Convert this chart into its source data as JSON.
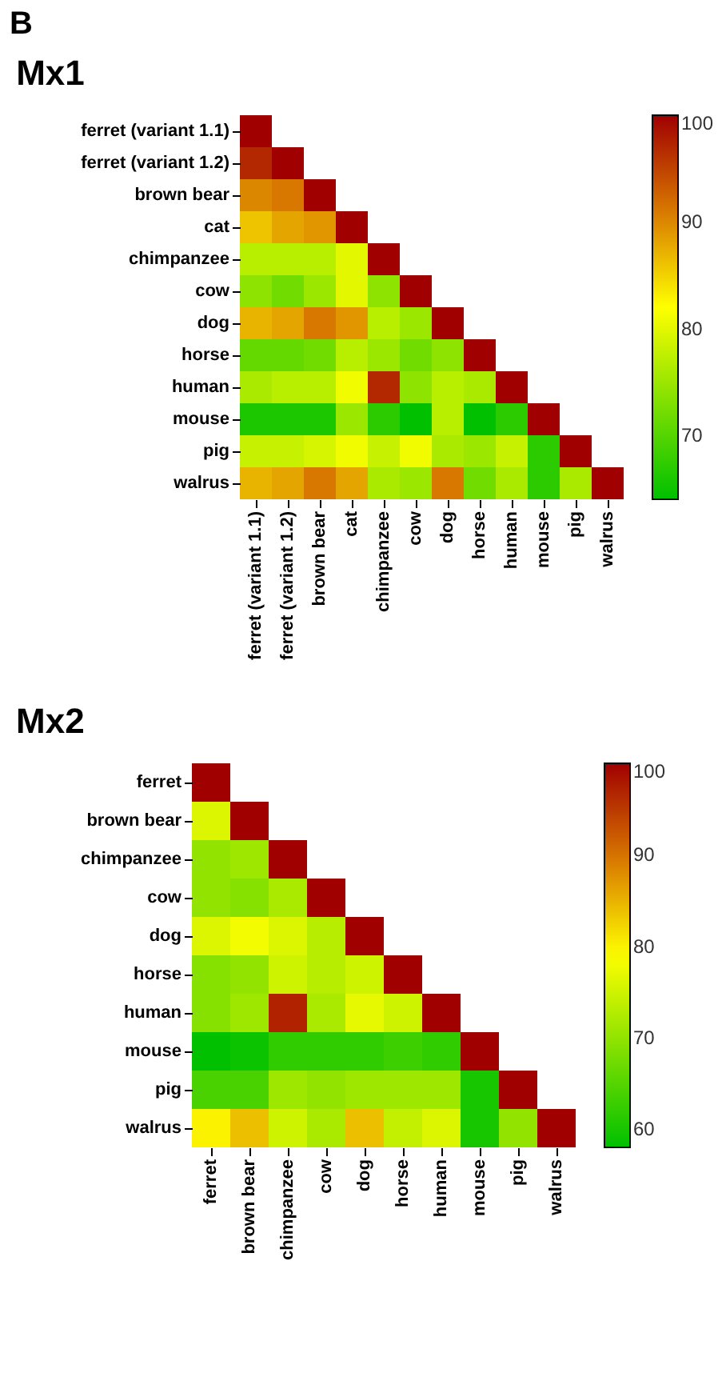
{
  "chart_data": [
    {
      "type": "heatmap",
      "title": "Mx1",
      "annotations": [
        "B"
      ],
      "categories": [
        "ferret (variant 1.1)",
        "ferret (variant 1.2)",
        "brown bear",
        "cat",
        "chimpanzee",
        "cow",
        "dog",
        "horse",
        "human",
        "mouse",
        "pig",
        "walrus"
      ],
      "y_categories": [
        "ferret (variant 1.1)",
        "ferret (variant 1.2)",
        "brown bear",
        "cat",
        "chimpanzee",
        "cow",
        "dog",
        "horse",
        "human",
        "mouse",
        "pig",
        "walrus"
      ],
      "cells": [
        [
          100,
          null,
          null,
          null,
          null,
          null,
          null,
          null,
          null,
          null,
          null,
          null
        ],
        [
          97,
          100,
          null,
          null,
          null,
          null,
          null,
          null,
          null,
          null,
          null,
          null
        ],
        [
          90,
          91,
          100,
          null,
          null,
          null,
          null,
          null,
          null,
          null,
          null,
          null
        ],
        [
          86,
          88,
          89,
          100,
          null,
          null,
          null,
          null,
          null,
          null,
          null,
          null
        ],
        [
          77,
          77,
          77,
          80,
          100,
          null,
          null,
          null,
          null,
          null,
          null,
          null
        ],
        [
          74,
          72,
          75,
          80,
          74,
          100,
          null,
          null,
          null,
          null,
          null,
          null
        ],
        [
          87,
          88,
          91,
          89,
          77,
          75,
          100,
          null,
          null,
          null,
          null,
          null
        ],
        [
          71,
          71,
          72,
          77,
          75,
          72,
          74,
          100,
          null,
          null,
          null,
          null
        ],
        [
          76,
          77,
          77,
          81,
          97,
          74,
          77,
          76,
          100,
          null,
          null,
          null
        ],
        [
          66,
          66,
          66,
          75,
          67,
          64,
          77,
          64,
          67,
          100,
          null,
          null
        ],
        [
          78,
          78,
          79,
          81,
          78,
          81,
          76,
          75,
          78,
          67,
          100,
          null
        ],
        [
          87,
          88,
          91,
          88,
          76,
          75,
          91,
          72,
          76,
          67,
          76,
          100
        ]
      ],
      "clim": [
        64,
        100
      ],
      "cticks": [
        70,
        80,
        90,
        100
      ]
    },
    {
      "type": "heatmap",
      "title": "Mx2",
      "categories": [
        "ferret",
        "brown bear",
        "chimpanzee",
        "cow",
        "dog",
        "horse",
        "human",
        "mouse",
        "pig",
        "walrus"
      ],
      "y_categories": [
        "ferret",
        "brown bear",
        "chimpanzee",
        "cow",
        "dog",
        "horse",
        "human",
        "mouse",
        "pig",
        "walrus"
      ],
      "cells": [
        [
          100,
          null,
          null,
          null,
          null,
          null,
          null,
          null,
          null,
          null
        ],
        [
          76,
          100,
          null,
          null,
          null,
          null,
          null,
          null,
          null,
          null
        ],
        [
          70,
          71,
          100,
          null,
          null,
          null,
          null,
          null,
          null,
          null
        ],
        [
          70,
          69,
          72,
          100,
          null,
          null,
          null,
          null,
          null,
          null
        ],
        [
          76,
          78,
          76,
          73,
          100,
          null,
          null,
          null,
          null,
          null
        ],
        [
          69,
          70,
          75,
          73,
          75,
          100,
          null,
          null,
          null,
          null
        ],
        [
          69,
          71,
          97,
          72,
          77,
          75,
          100,
          null,
          null,
          null
        ],
        [
          58,
          59,
          62,
          62,
          62,
          63,
          62,
          100,
          null,
          null
        ],
        [
          64,
          64,
          71,
          70,
          71,
          71,
          71,
          60,
          100,
          null
        ],
        [
          80,
          84,
          75,
          72,
          84,
          74,
          76,
          60,
          70,
          100
        ]
      ],
      "clim": [
        58,
        100
      ],
      "cticks": [
        60,
        70,
        80,
        90,
        100
      ]
    }
  ]
}
